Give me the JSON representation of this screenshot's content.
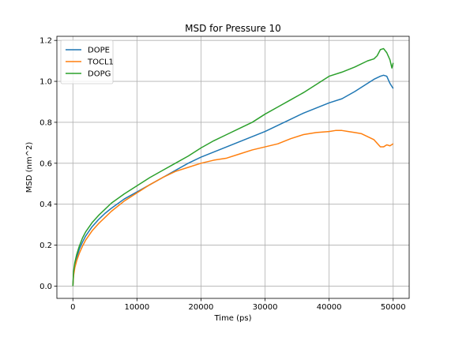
{
  "chart_data": {
    "type": "line",
    "title": "MSD for Pressure 10",
    "xlabel": "Time (ps)",
    "ylabel": "MSD (nm^2)",
    "xlim": [
      -2500,
      52500
    ],
    "ylim": [
      -0.06,
      1.22
    ],
    "xticks": [
      0,
      10000,
      20000,
      30000,
      40000,
      50000
    ],
    "yticks": [
      0.0,
      0.2,
      0.4,
      0.6,
      0.8,
      1.0,
      1.2
    ],
    "xtick_labels": [
      "0",
      "10000",
      "20000",
      "30000",
      "40000",
      "50000"
    ],
    "ytick_labels": [
      "0.0",
      "0.2",
      "0.4",
      "0.6",
      "0.8",
      "1.0",
      "1.2"
    ],
    "grid": true,
    "legend_position": "upper-left",
    "series": [
      {
        "name": "DOPE",
        "color": "#1f77b4",
        "x": [
          0,
          100,
          300,
          600,
          1000,
          1500,
          2000,
          3000,
          4000,
          5000,
          6000,
          8000,
          10000,
          12000,
          14000,
          16000,
          18000,
          20000,
          22000,
          24000,
          26000,
          28000,
          30000,
          32000,
          34000,
          36000,
          38000,
          40000,
          42000,
          44000,
          46000,
          47000,
          48000,
          48500,
          49000,
          49500,
          50000
        ],
        "y": [
          0.0,
          0.06,
          0.1,
          0.14,
          0.18,
          0.215,
          0.245,
          0.29,
          0.325,
          0.355,
          0.38,
          0.425,
          0.46,
          0.495,
          0.53,
          0.565,
          0.6,
          0.63,
          0.655,
          0.68,
          0.705,
          0.73,
          0.755,
          0.785,
          0.815,
          0.845,
          0.87,
          0.895,
          0.915,
          0.95,
          0.99,
          1.01,
          1.025,
          1.03,
          1.025,
          0.99,
          0.965
        ]
      },
      {
        "name": "TOCL1",
        "color": "#ff7f0e",
        "x": [
          0,
          100,
          300,
          600,
          1000,
          1500,
          2000,
          3000,
          4000,
          5000,
          6000,
          8000,
          10000,
          12000,
          14000,
          16000,
          18000,
          20000,
          22000,
          24000,
          26000,
          28000,
          30000,
          32000,
          34000,
          36000,
          38000,
          40000,
          41000,
          42000,
          43000,
          44000,
          45000,
          46000,
          47000,
          48000,
          48500,
          49000,
          49500,
          50000
        ],
        "y": [
          0.0,
          0.05,
          0.09,
          0.125,
          0.16,
          0.195,
          0.225,
          0.27,
          0.305,
          0.335,
          0.365,
          0.415,
          0.455,
          0.495,
          0.53,
          0.56,
          0.58,
          0.6,
          0.615,
          0.625,
          0.645,
          0.665,
          0.68,
          0.695,
          0.72,
          0.74,
          0.75,
          0.755,
          0.76,
          0.76,
          0.755,
          0.75,
          0.745,
          0.73,
          0.715,
          0.68,
          0.68,
          0.69,
          0.685,
          0.695
        ]
      },
      {
        "name": "DOPG",
        "color": "#2ca02c",
        "x": [
          0,
          100,
          300,
          600,
          1000,
          1500,
          2000,
          3000,
          4000,
          5000,
          6000,
          8000,
          10000,
          12000,
          14000,
          16000,
          18000,
          20000,
          22000,
          24000,
          26000,
          28000,
          30000,
          32000,
          34000,
          36000,
          38000,
          40000,
          42000,
          44000,
          46000,
          47000,
          47500,
          48000,
          48500,
          49000,
          49500,
          49800,
          50000
        ],
        "y": [
          0.0,
          0.07,
          0.115,
          0.155,
          0.195,
          0.235,
          0.265,
          0.31,
          0.345,
          0.375,
          0.405,
          0.45,
          0.49,
          0.53,
          0.565,
          0.6,
          0.635,
          0.675,
          0.71,
          0.74,
          0.77,
          0.8,
          0.84,
          0.875,
          0.91,
          0.945,
          0.985,
          1.025,
          1.045,
          1.07,
          1.1,
          1.11,
          1.125,
          1.155,
          1.16,
          1.14,
          1.105,
          1.065,
          1.09
        ]
      }
    ]
  }
}
